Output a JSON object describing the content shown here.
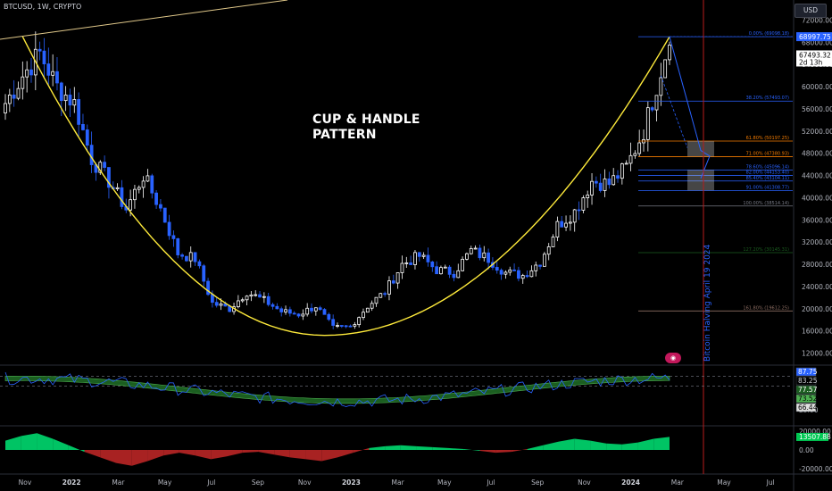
{
  "header": {
    "symbol_line": "BTCUSD, 1W, CRYPTO"
  },
  "toolbar": {
    "currency_button": "USD"
  },
  "annotations": {
    "pattern_line1": "CUP & HANDLE",
    "pattern_line2": "PATTERN",
    "halving_text": "Bitcoin Halving April 19 2024"
  },
  "colors": {
    "background": "#000000",
    "up_candle": "#ffffff",
    "down_candle": "#2962ff",
    "cup_curve": "#ffeb3b",
    "halving_line": "#b71c1c",
    "fib_blue": "#2962ff",
    "fib_orange": "#f57c00",
    "fib_green": "#1b5e20",
    "fib_brown": "#8d6e63",
    "hist_up": "#00e676",
    "hist_down": "#c62828",
    "rsi_line": "#2962ff",
    "rsi_band": "#1b5e20"
  },
  "chart_data": [
    {
      "type": "candlestick",
      "title": "BTCUSD, 1W, CRYPTO",
      "x_labels": [
        "Nov",
        "2022",
        "Mar",
        "May",
        "Jul",
        "Sep",
        "Nov",
        "2023",
        "Mar",
        "May",
        "Jul",
        "Sep",
        "Nov",
        "2024",
        "Mar",
        "May",
        "Jul"
      ],
      "y_ticks": [
        12000,
        16000,
        20000,
        24000,
        28000,
        32000,
        36000,
        40000,
        44000,
        48000,
        52000,
        56000,
        60000,
        64000,
        68000,
        72000
      ],
      "ylim": [
        10000,
        74000
      ],
      "price_labels": {
        "high": "68997.75",
        "last": "67493.32",
        "countdown": "2d 13h"
      },
      "series_path": [
        [
          0,
          57000
        ],
        [
          4,
          62000
        ],
        [
          8,
          66000
        ],
        [
          12,
          60000
        ],
        [
          16,
          57000
        ],
        [
          20,
          47000
        ],
        [
          24,
          43000
        ],
        [
          28,
          38000
        ],
        [
          32,
          44000
        ],
        [
          36,
          38000
        ],
        [
          40,
          30000
        ],
        [
          44,
          29000
        ],
        [
          48,
          21000
        ],
        [
          52,
          20000
        ],
        [
          56,
          23000
        ],
        [
          60,
          21500
        ],
        [
          64,
          19500
        ],
        [
          68,
          19000
        ],
        [
          72,
          20500
        ],
        [
          76,
          16500
        ],
        [
          80,
          16800
        ],
        [
          84,
          20500
        ],
        [
          88,
          23000
        ],
        [
          92,
          28000
        ],
        [
          96,
          29500
        ],
        [
          100,
          27000
        ],
        [
          104,
          26500
        ],
        [
          108,
          30500
        ],
        [
          112,
          29000
        ],
        [
          116,
          26500
        ],
        [
          120,
          26000
        ],
        [
          124,
          28500
        ],
        [
          128,
          35000
        ],
        [
          132,
          37500
        ],
        [
          136,
          43000
        ],
        [
          140,
          42500
        ],
        [
          144,
          45500
        ],
        [
          148,
          52000
        ],
        [
          152,
          63000
        ],
        [
          154,
          68500
        ]
      ],
      "fib_levels": [
        {
          "label": "0.00% (69098.18)",
          "value": 69000
        },
        {
          "label": "38.20% (57493.07)",
          "value": 57400
        },
        {
          "label": "61.80% (50197.25)",
          "value": 50200
        },
        {
          "label": "71.00% (47380.93)",
          "value": 47400
        },
        {
          "label": "78.60% (45096.14)",
          "value": 45000
        },
        {
          "label": "82.00% (44153.40)",
          "value": 44000
        },
        {
          "label": "85.40% (43104.11)",
          "value": 43000
        },
        {
          "label": "91.00% (41308.77)",
          "value": 41300
        },
        {
          "label": "100.00% (38514.14)",
          "value": 38500
        },
        {
          "label": "127.20% (30145.31)",
          "value": 30100
        },
        {
          "label": "161.80% (19612.25)",
          "value": 19600
        }
      ],
      "cup_curve": "yellow"
    },
    {
      "type": "line",
      "name": "oscillator",
      "y_ticks": [
        25.0
      ],
      "ylim": [
        0,
        100
      ],
      "value_labels": [
        "87.75",
        "83.25",
        "77.57",
        "73.52",
        "66.44"
      ]
    },
    {
      "type": "bar",
      "name": "histogram",
      "y_ticks": [
        20000.0,
        0.0,
        -20000.0
      ],
      "ylim": [
        -24000,
        24000
      ],
      "value_label": "13507.88",
      "values": [
        10000,
        15000,
        18000,
        12000,
        5000,
        -2000,
        -8000,
        -14000,
        -17000,
        -12000,
        -6000,
        -3000,
        -6000,
        -10000,
        -7000,
        -3000,
        -2000,
        -5000,
        -8000,
        -10000,
        -12000,
        -8000,
        -3000,
        2000,
        4000,
        5000,
        4000,
        3000,
        2000,
        1000,
        -1000,
        -3000,
        -2000,
        1000,
        5000,
        9000,
        12000,
        10000,
        7000,
        6000,
        8000,
        12000,
        14000
      ]
    }
  ]
}
